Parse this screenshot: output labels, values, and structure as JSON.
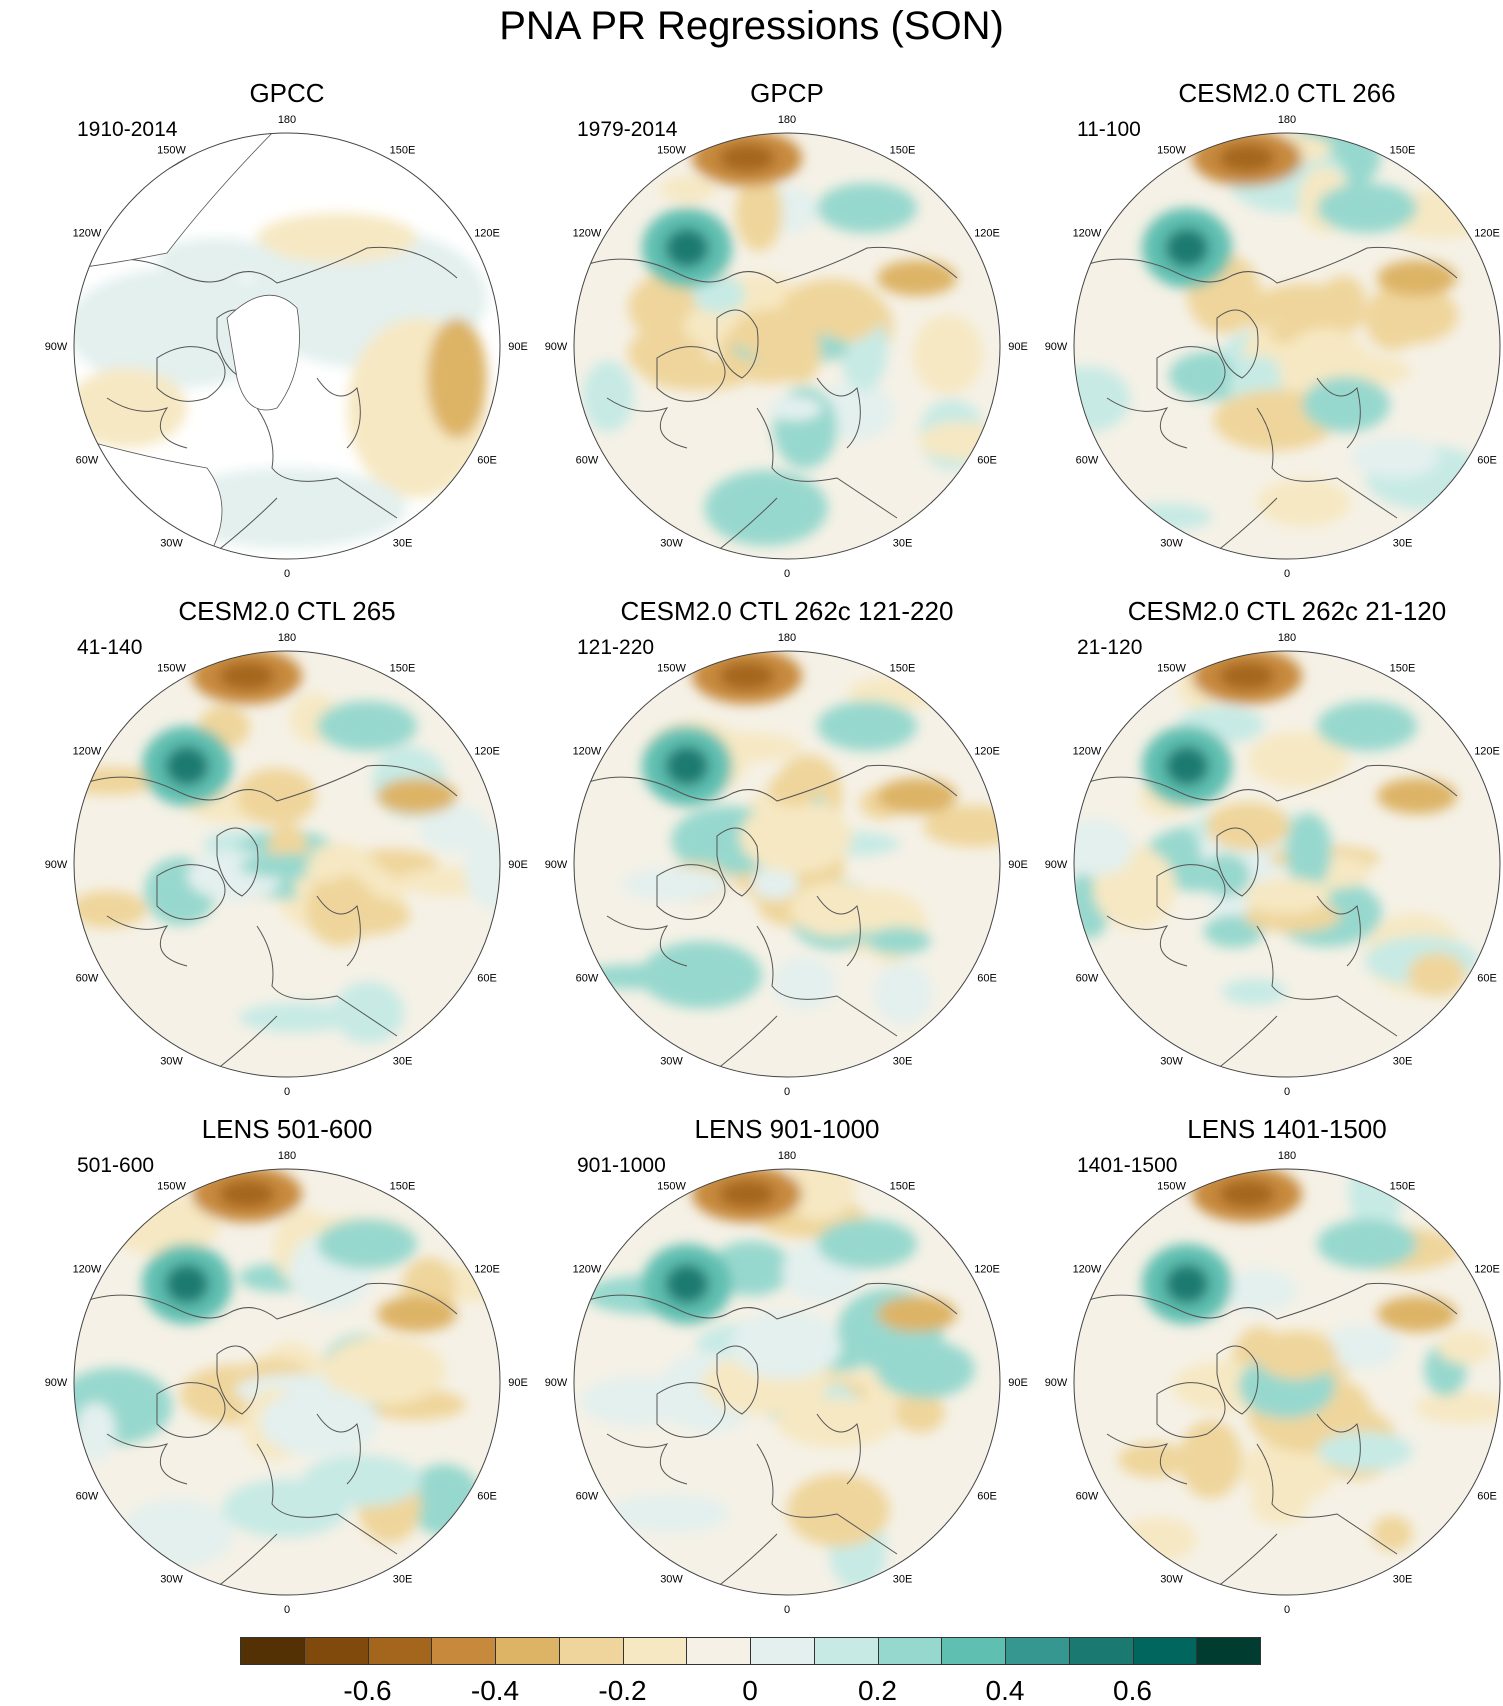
{
  "title": "PNA PR Regressions (SON)",
  "lon_labels": [
    "180",
    "150E",
    "120E",
    "90E",
    "60E",
    "30E",
    "0",
    "30W",
    "60W",
    "90W",
    "120W",
    "150W"
  ],
  "panels": [
    {
      "title": "GPCC",
      "period": "1910-2014",
      "type": "land-only"
    },
    {
      "title": "GPCP",
      "period": "1979-2014",
      "type": "full"
    },
    {
      "title": "CESM2.0 CTL 266",
      "period": "11-100",
      "type": "full"
    },
    {
      "title": "CESM2.0 CTL 265",
      "period": "41-140",
      "type": "full"
    },
    {
      "title": "CESM2.0 CTL 262c 121-220",
      "period": "121-220",
      "type": "full"
    },
    {
      "title": "CESM2.0 CTL 262c 21-120",
      "period": "21-120",
      "type": "full"
    },
    {
      "title": "LENS 501-600",
      "period": "501-600",
      "type": "full"
    },
    {
      "title": "LENS 901-1000",
      "period": "901-1000",
      "type": "full"
    },
    {
      "title": "LENS 1401-1500",
      "period": "1401-1500",
      "type": "full"
    }
  ],
  "colorbar": {
    "colors": [
      "#543005",
      "#7f4a0c",
      "#a4661c",
      "#c78a3c",
      "#ddb466",
      "#efd59b",
      "#f6e8c3",
      "#f5f1e6",
      "#e3f0ee",
      "#c7eae5",
      "#97d8ce",
      "#5fbfb1",
      "#35978f",
      "#1a7a71",
      "#01665e",
      "#003c30"
    ],
    "tick_labels": [
      "-0.6",
      "-0.4",
      "-0.2",
      "0",
      "0.2",
      "0.4",
      "0.6"
    ]
  }
}
